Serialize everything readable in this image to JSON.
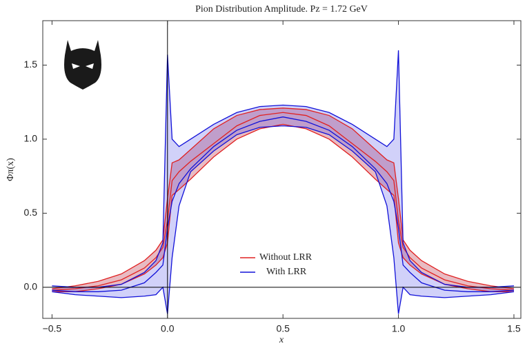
{
  "chart_data": {
    "type": "band",
    "title": "Pion Distribution Amplitude. Pz = 1.72 GeV",
    "x_label": "x",
    "y_label": "Φπ(x)",
    "x": [
      -0.5,
      -0.4,
      -0.3,
      -0.2,
      -0.1,
      -0.05,
      -0.02,
      0,
      0.02,
      0.05,
      0.1,
      0.2,
      0.3,
      0.4,
      0.5,
      0.6,
      0.7,
      0.8,
      0.9,
      0.95,
      0.98,
      1,
      1.02,
      1.05,
      1.1,
      1.2,
      1.3,
      1.4,
      1.5
    ],
    "series": [
      {
        "name": "Without LRR",
        "color": "#e02020",
        "fill": "rgba(190,60,80,0.35)",
        "values": [
          -0.02,
          -0.01,
          0.01,
          0.05,
          0.13,
          0.2,
          0.27,
          0.45,
          0.72,
          0.78,
          0.85,
          0.97,
          1.09,
          1.16,
          1.18,
          1.16,
          1.09,
          0.97,
          0.85,
          0.78,
          0.72,
          0.45,
          0.27,
          0.2,
          0.13,
          0.05,
          0.01,
          -0.01,
          -0.02
        ],
        "lower": [
          -0.03,
          -0.03,
          -0.01,
          0.02,
          0.09,
          0.15,
          0.2,
          0.3,
          0.62,
          0.66,
          0.73,
          0.88,
          1.0,
          1.07,
          1.1,
          1.07,
          1.0,
          0.88,
          0.73,
          0.66,
          0.62,
          0.3,
          0.2,
          0.15,
          0.09,
          0.02,
          -0.01,
          -0.03,
          -0.03
        ],
        "upper": [
          -0.01,
          0.01,
          0.04,
          0.09,
          0.18,
          0.25,
          0.32,
          0.6,
          0.84,
          0.86,
          0.93,
          1.07,
          1.16,
          1.2,
          1.21,
          1.2,
          1.16,
          1.07,
          0.93,
          0.86,
          0.84,
          0.6,
          0.32,
          0.25,
          0.18,
          0.09,
          0.04,
          0.01,
          -0.01
        ]
      },
      {
        "name": "With LRR",
        "color": "#1010d8",
        "fill": "rgba(70,70,230,0.25)",
        "values": [
          -0.02,
          -0.03,
          -0.03,
          -0.02,
          0.03,
          0.1,
          0.15,
          0.4,
          0.58,
          0.7,
          0.8,
          0.95,
          1.06,
          1.12,
          1.15,
          1.12,
          1.06,
          0.95,
          0.8,
          0.7,
          0.58,
          0.4,
          0.15,
          0.1,
          0.03,
          -0.02,
          -0.03,
          -0.03,
          -0.02
        ],
        "lower": [
          -0.03,
          -0.05,
          -0.06,
          -0.07,
          -0.06,
          -0.05,
          0.0,
          -0.18,
          0.2,
          0.55,
          0.78,
          0.92,
          1.03,
          1.08,
          1.09,
          1.08,
          1.03,
          0.92,
          0.78,
          0.55,
          0.2,
          -0.18,
          0.0,
          -0.05,
          -0.06,
          -0.07,
          -0.06,
          -0.05,
          -0.03
        ],
        "upper": [
          0.01,
          0.0,
          0.0,
          0.02,
          0.1,
          0.18,
          0.3,
          1.57,
          1.0,
          0.95,
          1.0,
          1.1,
          1.18,
          1.22,
          1.23,
          1.22,
          1.18,
          1.1,
          1.0,
          0.95,
          1.0,
          1.6,
          0.3,
          0.18,
          0.1,
          0.02,
          0.0,
          0.0,
          0.01
        ]
      }
    ],
    "xlim": [
      -0.54,
      1.53
    ],
    "ylim": [
      -0.21,
      1.8
    ],
    "xticks": [
      {
        "value": -0.5,
        "label": "−0.5"
      },
      {
        "value": 0,
        "label": "0.0"
      },
      {
        "value": 0.5,
        "label": "0.5"
      },
      {
        "value": 1,
        "label": "1.0"
      },
      {
        "value": 1.5,
        "label": "1.5"
      }
    ],
    "yticks": [
      {
        "value": 0,
        "label": "0.0"
      },
      {
        "value": 0.5,
        "label": "0.5"
      },
      {
        "value": 1,
        "label": "1.0"
      },
      {
        "value": 1.5,
        "label": "1.5"
      }
    ],
    "legend_position": "center"
  }
}
